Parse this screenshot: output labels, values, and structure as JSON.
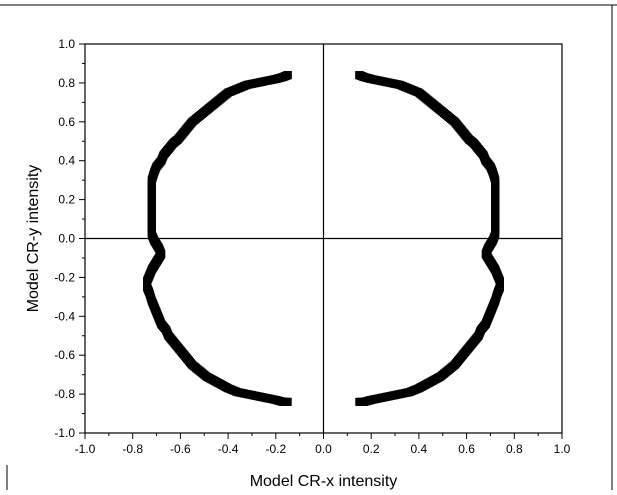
{
  "chart_data": {
    "type": "scatter",
    "title": "",
    "xlabel": "Model CR-x intensity",
    "ylabel": "Model CR-y intensity",
    "xlim": [
      -1.0,
      1.0
    ],
    "ylim": [
      -1.0,
      1.0
    ],
    "x_ticks": [
      "-1.0",
      "-0.8",
      "-0.6",
      "-0.4",
      "-0.2",
      "0.0",
      "0.2",
      "0.4",
      "0.6",
      "0.8",
      "1.0"
    ],
    "y_ticks": [
      "1.0",
      "0.8",
      "0.6",
      "0.4",
      "0.2",
      "0.0",
      "-0.2",
      "-0.4",
      "-0.6",
      "-0.8",
      "-1.0"
    ],
    "grid": false,
    "reference_lines": [
      "x = 0",
      "y = 0"
    ],
    "marker": "filled square",
    "color": "#000000",
    "series": [
      {
        "x": [
          -0.15,
          -0.17,
          -0.2,
          -0.24,
          -0.28,
          -0.32,
          -0.36,
          -0.4,
          -0.43,
          -0.46,
          -0.49,
          -0.52,
          -0.55,
          -0.57,
          -0.59,
          -0.61,
          -0.63,
          -0.65,
          -0.67,
          -0.68,
          -0.7,
          -0.71,
          -0.72,
          -0.72,
          -0.72,
          -0.72,
          -0.72,
          -0.72,
          -0.72,
          -0.72,
          -0.71,
          -0.7,
          -0.69,
          -0.68,
          -0.69,
          -0.7,
          -0.71,
          -0.72,
          -0.73,
          -0.74,
          -0.74,
          -0.73,
          -0.72,
          -0.71,
          -0.7,
          -0.69,
          -0.68,
          -0.66,
          -0.65,
          -0.63,
          -0.61,
          -0.59,
          -0.57,
          -0.55,
          -0.52,
          -0.49,
          -0.46,
          -0.43,
          -0.4,
          -0.36,
          -0.32,
          -0.28,
          -0.24,
          -0.2,
          -0.17,
          -0.15,
          0.15,
          0.17,
          0.2,
          0.24,
          0.28,
          0.32,
          0.36,
          0.4,
          0.43,
          0.46,
          0.49,
          0.52,
          0.55,
          0.57,
          0.59,
          0.61,
          0.63,
          0.65,
          0.67,
          0.68,
          0.7,
          0.71,
          0.72,
          0.72,
          0.72,
          0.72,
          0.72,
          0.72,
          0.72,
          0.72,
          0.71,
          0.7,
          0.69,
          0.68,
          0.69,
          0.7,
          0.71,
          0.72,
          0.73,
          0.74,
          0.74,
          0.73,
          0.72,
          0.71,
          0.7,
          0.69,
          0.68,
          0.66,
          0.65,
          0.63,
          0.61,
          0.59,
          0.57,
          0.55,
          0.52,
          0.49,
          0.46,
          0.43,
          0.4,
          0.36,
          0.32,
          0.28,
          0.24,
          0.2,
          0.17,
          0.15
        ],
        "y": [
          0.84,
          0.83,
          0.82,
          0.81,
          0.8,
          0.79,
          0.77,
          0.75,
          0.72,
          0.69,
          0.66,
          0.63,
          0.6,
          0.57,
          0.54,
          0.51,
          0.49,
          0.46,
          0.43,
          0.4,
          0.37,
          0.34,
          0.3,
          0.26,
          0.22,
          0.18,
          0.14,
          0.1,
          0.06,
          0.02,
          -0.01,
          -0.03,
          -0.05,
          -0.08,
          -0.1,
          -0.12,
          -0.14,
          -0.16,
          -0.19,
          -0.22,
          -0.25,
          -0.28,
          -0.32,
          -0.35,
          -0.38,
          -0.41,
          -0.44,
          -0.47,
          -0.5,
          -0.53,
          -0.56,
          -0.59,
          -0.62,
          -0.65,
          -0.68,
          -0.71,
          -0.73,
          -0.75,
          -0.77,
          -0.79,
          -0.8,
          -0.81,
          -0.82,
          -0.83,
          -0.84,
          -0.84,
          0.84,
          0.83,
          0.82,
          0.81,
          0.8,
          0.79,
          0.77,
          0.75,
          0.72,
          0.69,
          0.66,
          0.63,
          0.6,
          0.57,
          0.54,
          0.51,
          0.49,
          0.46,
          0.43,
          0.4,
          0.37,
          0.34,
          0.3,
          0.26,
          0.22,
          0.18,
          0.14,
          0.1,
          0.06,
          0.02,
          -0.01,
          -0.03,
          -0.05,
          -0.08,
          -0.1,
          -0.12,
          -0.14,
          -0.16,
          -0.19,
          -0.22,
          -0.25,
          -0.28,
          -0.32,
          -0.35,
          -0.38,
          -0.41,
          -0.44,
          -0.47,
          -0.5,
          -0.53,
          -0.56,
          -0.59,
          -0.62,
          -0.65,
          -0.68,
          -0.71,
          -0.73,
          -0.75,
          -0.77,
          -0.79,
          -0.8,
          -0.81,
          -0.82,
          -0.83,
          -0.84,
          -0.84
        ]
      }
    ]
  }
}
